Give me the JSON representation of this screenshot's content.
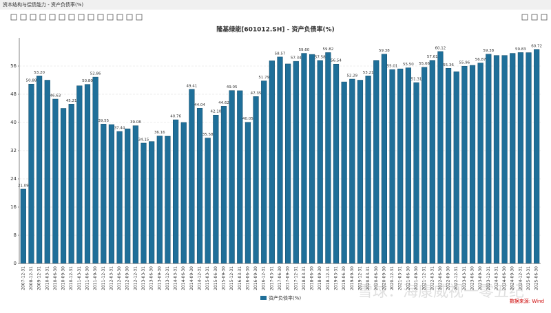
{
  "window_title": "资本结构与偿债能力 - 资产负债率(%)",
  "chart_data": {
    "type": "bar",
    "title": "隆基绿能[601012.SH] - 资产负债率(%)",
    "categories": [
      "2007-12-31",
      "2008-12-31",
      "2009-12-31",
      "2010-03-31",
      "2010-06-30",
      "2010-09-30",
      "2010-12-31",
      "2011-03-31",
      "2011-06-30",
      "2011-09-30",
      "2011-12-31",
      "2012-03-31",
      "2012-06-30",
      "2012-09-30",
      "2012-12-31",
      "2013-03-31",
      "2013-06-30",
      "2013-09-30",
      "2013-12-31",
      "2014-03-31",
      "2014-06-30",
      "2014-09-30",
      "2014-12-31",
      "2015-03-31",
      "2015-06-30",
      "2015-09-30",
      "2015-12-31",
      "2016-03-31",
      "2016-06-30",
      "2016-09-30",
      "2016-12-31",
      "2017-03-31",
      "2017-06-30",
      "2017-09-30",
      "2017-12-31",
      "2018-03-31",
      "2018-06-30",
      "2018-09-30",
      "2018-12-31",
      "2019-03-31",
      "2019-06-30",
      "2019-09-30",
      "2019-12-31",
      "2020-03-31",
      "2020-06-30",
      "2020-09-30",
      "2020-12-31",
      "2021-03-31",
      "2021-06-30",
      "2021-09-30",
      "2021-12-31",
      "2022-03-31",
      "2022-06-30",
      "2022-09-30",
      "2022-12-31",
      "2023-03-31",
      "2023-06-30",
      "2023-09-30",
      "2023-12-31",
      "2024-03-31",
      "2024-06-30",
      "2024-09-30",
      "2024-12-31",
      "2025-03-31",
      "2025-06-30"
    ],
    "series": [
      {
        "name": "资产负债率(%)",
        "color": "#1f6f99",
        "values": [
          21.09,
          50.88,
          53.2,
          52,
          46.63,
          44,
          45.21,
          50.4,
          50.8,
          52.86,
          39.55,
          39.4,
          37.44,
          38.2,
          39.08,
          34.15,
          34.6,
          36.16,
          36.1,
          40.76,
          40,
          49.41,
          44.04,
          35.58,
          42.1,
          44.62,
          49.05,
          49,
          40.05,
          47.35,
          51.79,
          57.5,
          58.57,
          56.6,
          57.34,
          59.6,
          59.3,
          57.58,
          59.82,
          56.54,
          51.5,
          52.29,
          52,
          53.21,
          57.6,
          59.38,
          55.01,
          55.2,
          55.5,
          51.31,
          55.66,
          57.61,
          60.12,
          55.36,
          54.4,
          55.96,
          56.2,
          56.87,
          59.38,
          59,
          59,
          59.6,
          59.83,
          59.8,
          60.72
        ],
        "value_labels": [
          "21.09",
          "50.88",
          "53.20",
          null,
          "46.63",
          null,
          "45.21",
          null,
          "50.80",
          "52.86",
          "39.55",
          null,
          "37.44",
          null,
          "39.08",
          "34.15",
          null,
          "36.16",
          null,
          "40.76",
          null,
          "49.41",
          "44.04",
          "35.58",
          "42.10",
          "44.62",
          "49.05",
          null,
          "40.05",
          "47.35",
          "51.79",
          null,
          "58.57",
          null,
          "57.34",
          "59.60",
          null,
          "57.58",
          "59.82",
          "56.54",
          null,
          "52.29",
          null,
          "53.21",
          null,
          "59.38",
          "55.01",
          null,
          "55.50",
          "51.31",
          "55.66",
          "57.61",
          "60.12",
          "55.36",
          null,
          "55.96",
          null,
          "56.87",
          "59.38",
          null,
          null,
          null,
          "59.83",
          null,
          "60.72"
        ]
      }
    ],
    "ylim": [
      0,
      64
    ],
    "yticks": [
      0,
      8,
      16,
      24,
      32,
      40,
      48,
      56
    ],
    "grid": true,
    "source": "数据来源: Wind",
    "watermark": "雪球：海康威视一零五纪"
  }
}
